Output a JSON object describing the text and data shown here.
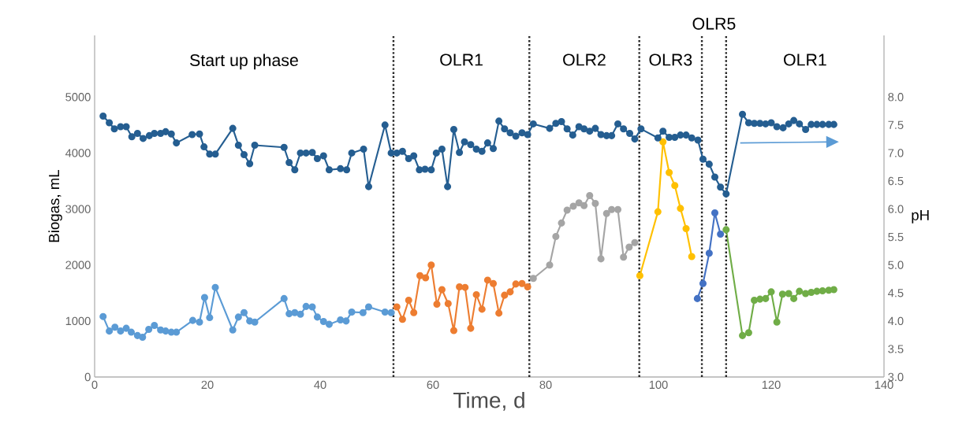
{
  "chart_data": {
    "type": "line",
    "xlabel": "Time, d",
    "ylabel": "Biogas, mL",
    "y2label": "pH",
    "xlim": [
      0,
      140
    ],
    "xticks": [
      0,
      20,
      40,
      60,
      80,
      100,
      120,
      140
    ],
    "ylim": [
      0,
      6100
    ],
    "yticks": [
      0,
      1000,
      2000,
      3000,
      4000,
      5000
    ],
    "y2lim": [
      3,
      9.1
    ],
    "y2ticks": [
      {
        "value": 3,
        "label": "3.0"
      },
      {
        "value": 3.5,
        "label": "3.5"
      },
      {
        "value": 4,
        "label": "4.0"
      },
      {
        "value": 4.5,
        "label": "4.5"
      },
      {
        "value": 5,
        "label": "5.0"
      },
      {
        "value": 5.5,
        "label": "5.5"
      },
      {
        "value": 6,
        "label": "6.0"
      },
      {
        "value": 6.5,
        "label": "6.5"
      },
      {
        "value": 7,
        "label": "7.0"
      },
      {
        "value": 7.5,
        "label": "7.5"
      },
      {
        "value": 8,
        "label": "8.0"
      }
    ],
    "marker": "circle",
    "ref_lines": [
      {
        "axis": "x",
        "value": 53.0,
        "line_style": "dotted",
        "color": "#262626"
      },
      {
        "axis": "x",
        "value": 77.1,
        "line_style": "dotted",
        "color": "#262626"
      },
      {
        "axis": "x",
        "value": 96.6,
        "line_style": "dotted",
        "color": "#262626"
      },
      {
        "axis": "x",
        "value": 107.7,
        "line_style": "dotted",
        "color": "#262626"
      },
      {
        "axis": "x",
        "value": 112.0,
        "line_style": "dotted",
        "color": "#262626"
      }
    ],
    "annotations": [
      "Start up phase",
      "OLR1",
      "OLR2",
      "OLR3",
      "OLR5",
      "OLR1"
    ],
    "series": [
      {
        "color": "#255e91",
        "axis": "y2",
        "x": [
          1.5,
          2.6,
          3.5,
          4.6,
          5.6,
          6.6,
          7.6,
          8.6,
          9.7,
          10.6,
          11.7,
          12.6,
          13.6,
          14.5,
          17.3,
          18.6,
          19.4,
          20.4,
          21.4,
          24.5,
          25.5,
          26.5,
          27.5,
          28.4,
          33.6,
          34.5,
          35.5,
          36.5,
          37.5,
          38.6,
          39.5,
          40.6,
          41.6,
          43.6,
          44.7,
          45.6,
          47.7,
          48.6,
          51.5,
          52.6,
          53.6,
          54.6,
          55.7,
          56.6,
          57.6,
          58.6,
          59.7,
          60.6,
          61.6,
          62.6,
          63.7,
          64.7,
          65.6,
          66.7,
          67.7,
          68.7,
          69.7,
          70.7,
          71.7,
          72.7,
          73.7,
          74.7,
          75.8,
          76.8,
          77.8,
          80.7,
          81.8,
          82.8,
          83.8,
          84.8,
          85.9,
          86.8,
          87.8,
          88.8,
          89.8,
          90.8,
          91.7,
          92.8,
          93.8,
          94.9,
          95.8,
          96.9,
          99.9,
          100.8,
          101.9,
          102.9,
          103.9,
          104.9,
          105.9,
          107.0,
          107.9,
          109.0,
          110.0,
          111.0,
          112.0,
          114.9,
          116.0,
          117.0,
          118.0,
          119.0,
          120.0,
          121.0,
          122.1,
          123.1,
          124.0,
          125.0,
          126.1,
          127.1,
          128.1,
          129.1,
          130.2,
          131.1
        ],
        "values": [
          7.66,
          7.54,
          7.43,
          7.47,
          7.47,
          7.29,
          7.35,
          7.26,
          7.31,
          7.35,
          7.35,
          7.38,
          7.34,
          7.18,
          7.33,
          7.34,
          7.11,
          6.98,
          6.98,
          7.44,
          7.14,
          6.97,
          6.81,
          7.14,
          7.1,
          6.83,
          6.7,
          7.0,
          7.0,
          7.01,
          6.9,
          6.95,
          6.7,
          6.72,
          6.7,
          7.0,
          7.07,
          6.4,
          7.5,
          7.0,
          7.0,
          7.03,
          6.9,
          6.95,
          6.7,
          6.71,
          6.7,
          7.0,
          7.07,
          6.4,
          7.42,
          7.01,
          7.2,
          7.15,
          7.07,
          7.03,
          7.18,
          7.08,
          7.57,
          7.43,
          7.36,
          7.3,
          7.36,
          7.33,
          7.52,
          7.44,
          7.53,
          7.56,
          7.43,
          7.32,
          7.47,
          7.43,
          7.39,
          7.44,
          7.33,
          7.31,
          7.31,
          7.52,
          7.43,
          7.35,
          7.25,
          7.43,
          7.27,
          7.39,
          7.28,
          7.28,
          7.32,
          7.32,
          7.27,
          7.23,
          6.89,
          6.8,
          6.57,
          6.39,
          6.27,
          7.69,
          7.54,
          7.53,
          7.53,
          7.52,
          7.54,
          7.47,
          7.45,
          7.52,
          7.58,
          7.52,
          7.42,
          7.51,
          7.51,
          7.51,
          7.51,
          7.51
        ]
      },
      {
        "color": "#5b9bd5",
        "x": [
          1.5,
          2.6,
          3.6,
          4.6,
          5.6,
          6.5,
          7.6,
          8.5,
          9.6,
          10.6,
          11.7,
          12.6,
          13.6,
          14.5,
          17.4,
          18.6,
          19.5,
          20.4,
          21.4,
          24.5,
          25.5,
          26.5,
          27.5,
          28.4,
          33.6,
          34.5,
          35.5,
          36.5,
          37.5,
          38.6,
          39.5,
          40.6,
          41.6,
          43.6,
          44.6,
          45.6,
          47.6,
          48.6,
          51.5,
          52.6
        ],
        "values": [
          1080,
          820,
          890,
          820,
          870,
          800,
          740,
          710,
          850,
          920,
          840,
          820,
          800,
          800,
          1010,
          980,
          1420,
          1060,
          1600,
          840,
          1070,
          1150,
          1000,
          980,
          1400,
          1130,
          1150,
          1120,
          1260,
          1250,
          1070,
          990,
          940,
          1020,
          1000,
          1160,
          1150,
          1250,
          1160,
          1150
        ]
      },
      {
        "color": "#ed7d31",
        "x": [
          53.6,
          54.6,
          55.7,
          56.6,
          57.7,
          58.7,
          59.7,
          60.7,
          61.6,
          62.7,
          63.7,
          64.7,
          65.7,
          66.7,
          67.7,
          68.7,
          69.7,
          70.7,
          71.7,
          72.7,
          73.7,
          74.7,
          75.8,
          76.8
        ],
        "values": [
          1250,
          1030,
          1370,
          1150,
          1810,
          1770,
          2000,
          1300,
          1560,
          1310,
          830,
          1610,
          1600,
          870,
          1470,
          1210,
          1730,
          1670,
          1140,
          1460,
          1520,
          1660,
          1670,
          1610
        ]
      },
      {
        "color": "#a5a5a5",
        "x": [
          77.8,
          80.7,
          81.8,
          82.8,
          83.8,
          84.9,
          85.9,
          86.8,
          87.8,
          88.8,
          89.8,
          90.8,
          91.7,
          92.8,
          93.8,
          94.8,
          95.8
        ],
        "values": [
          1760,
          2000,
          2510,
          2750,
          2980,
          3050,
          3110,
          3060,
          3240,
          3100,
          2110,
          2920,
          2990,
          2990,
          2140,
          2320,
          2400
        ]
      },
      {
        "color": "#ffc000",
        "x": [
          96.7,
          99.9,
          100.8,
          101.9,
          102.9,
          103.9,
          104.9,
          105.9
        ],
        "values": [
          1810,
          2950,
          4200,
          3650,
          3420,
          3010,
          2650,
          2150
        ]
      },
      {
        "color": "#4472c4",
        "x": [
          106.9,
          107.9,
          109.0,
          110.0,
          111.0
        ],
        "values": [
          1400,
          1670,
          2210,
          2930,
          2550
        ]
      },
      {
        "color": "#70ad47",
        "x": [
          112.0,
          114.9,
          116.0,
          117.0,
          118.0,
          119.0,
          120.0,
          121.0,
          122.0,
          123.1,
          124.0,
          125.0,
          126.1,
          127.1,
          128.1,
          129.1,
          130.2,
          131.1
        ],
        "values": [
          2630,
          740,
          790,
          1370,
          1390,
          1400,
          1520,
          980,
          1480,
          1490,
          1400,
          1530,
          1490,
          1510,
          1530,
          1540,
          1550,
          1560
        ]
      }
    ]
  }
}
